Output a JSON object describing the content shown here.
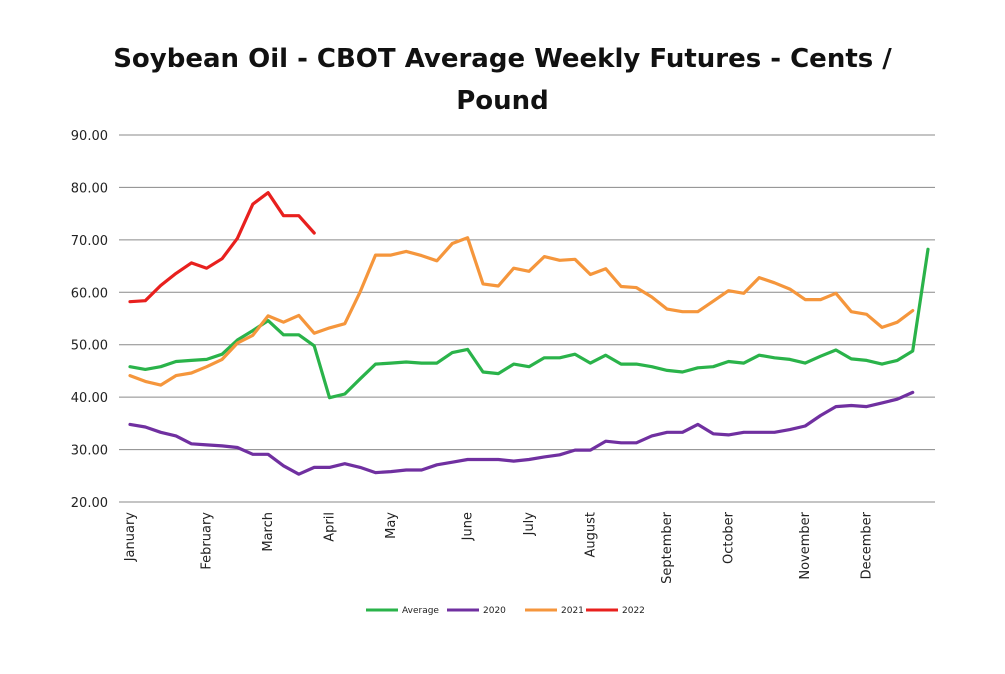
{
  "chart_data": {
    "type": "line",
    "title_lines": [
      "Soybean Oil - CBOT Average Weekly Futures - Cents /",
      "Pound"
    ],
    "xlabel": "",
    "ylabel": "",
    "ylim": [
      20,
      90
    ],
    "y_ticks": [
      "20.00",
      "30.00",
      "40.00",
      "50.00",
      "60.00",
      "70.00",
      "80.00",
      "90.00"
    ],
    "y_tick_values": [
      20,
      30,
      40,
      50,
      60,
      70,
      80,
      90
    ],
    "x_week_count": 53,
    "month_labels": [
      {
        "label": "January",
        "week": 1
      },
      {
        "label": "February",
        "week": 6
      },
      {
        "label": "March",
        "week": 10
      },
      {
        "label": "April",
        "week": 14
      },
      {
        "label": "May",
        "week": 18
      },
      {
        "label": "June",
        "week": 23
      },
      {
        "label": "July",
        "week": 27
      },
      {
        "label": "August",
        "week": 31
      },
      {
        "label": "September",
        "week": 36
      },
      {
        "label": "October",
        "week": 40
      },
      {
        "label": "November",
        "week": 45
      },
      {
        "label": "December",
        "week": 49
      }
    ],
    "grid": true,
    "legend_position": "bottom",
    "series": [
      {
        "name": "Average",
        "color": "#2ab34a",
        "values": [
          45.8,
          45.3,
          45.8,
          46.8,
          47.0,
          47.2,
          48.2,
          50.9,
          52.7,
          54.6,
          51.9,
          51.9,
          49.8,
          39.9,
          40.6,
          43.5,
          46.3,
          46.5,
          46.7,
          46.5,
          46.5,
          48.5,
          49.1,
          44.8,
          44.5,
          46.3,
          45.8,
          47.5,
          47.5,
          48.2,
          46.5,
          48.0,
          46.3,
          46.3,
          45.8,
          45.1,
          44.8,
          45.6,
          45.8,
          46.8,
          46.5,
          48.0,
          47.5,
          47.2,
          46.5,
          47.8,
          49.0,
          47.3,
          47.0,
          46.3,
          47.0,
          48.8,
          68.2
        ]
      },
      {
        "name": "2020",
        "color": "#7030a0",
        "values": [
          34.8,
          34.3,
          33.3,
          32.6,
          31.1,
          30.9,
          30.7,
          30.4,
          29.1,
          29.1,
          26.9,
          25.3,
          26.6,
          26.6,
          27.3,
          26.6,
          25.6,
          25.8,
          26.1,
          26.1,
          27.1,
          27.6,
          28.1,
          28.1,
          28.1,
          27.8,
          28.1,
          28.6,
          29.0,
          29.9,
          29.9,
          31.6,
          31.3,
          31.3,
          32.6,
          33.3,
          33.3,
          34.8,
          33.0,
          32.8,
          33.3,
          33.3,
          33.3,
          33.8,
          34.5,
          36.5,
          38.2,
          38.4,
          38.2,
          38.9,
          39.6,
          40.9,
          null
        ]
      },
      {
        "name": "2021",
        "color": "#f5963c",
        "values": [
          44.1,
          43.0,
          42.3,
          44.1,
          44.6,
          45.8,
          47.2,
          50.3,
          51.8,
          55.5,
          54.3,
          55.6,
          52.2,
          53.2,
          54.0,
          60.1,
          67.1,
          67.1,
          67.8,
          67.0,
          66.0,
          69.3,
          70.4,
          61.6,
          61.2,
          64.6,
          64.0,
          66.8,
          66.1,
          66.3,
          63.4,
          64.5,
          61.1,
          60.9,
          59.1,
          56.8,
          56.3,
          56.3,
          58.3,
          60.3,
          59.8,
          62.8,
          61.8,
          60.6,
          58.6,
          58.6,
          59.8,
          56.3,
          55.8,
          53.3,
          54.3,
          56.5,
          null
        ]
      },
      {
        "name": "2022",
        "color": "#e8201e",
        "values": [
          58.2,
          58.4,
          61.3,
          63.6,
          65.6,
          64.6,
          66.4,
          70.3,
          76.8,
          79.0,
          74.6,
          74.6,
          71.3,
          null,
          null,
          null,
          null,
          null,
          null,
          null,
          null,
          null,
          null,
          null,
          null,
          null,
          null,
          null,
          null,
          null,
          null,
          null,
          null,
          null,
          null,
          null,
          null,
          null,
          null,
          null,
          null,
          null,
          null,
          null,
          null,
          null,
          null,
          null,
          null,
          null,
          null,
          null,
          null
        ]
      }
    ]
  }
}
